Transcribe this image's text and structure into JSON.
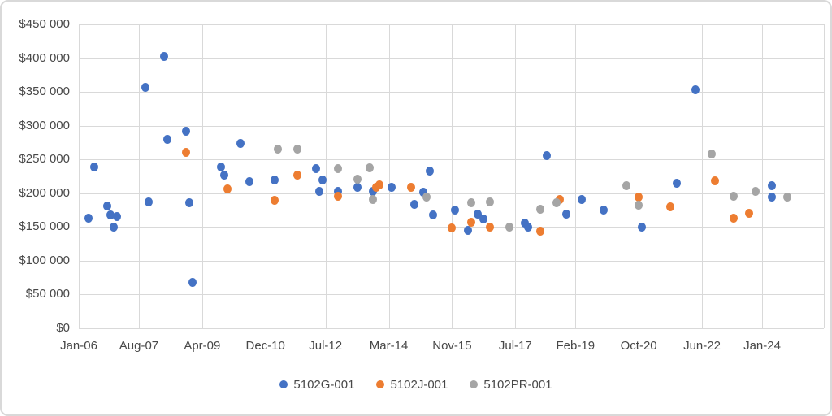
{
  "chart_data": {
    "type": "scatter",
    "title": "",
    "xlabel": "",
    "ylabel": "",
    "x_axis": {
      "tick_labels": [
        "Jan-06",
        "Aug-07",
        "Apr-09",
        "Dec-10",
        "Jul-12",
        "Mar-14",
        "Nov-15",
        "Jul-17",
        "Feb-19",
        "Oct-20",
        "Jun-22",
        "Jan-24"
      ],
      "start": "Jan-06",
      "months_span_labeled": 216,
      "grid": true
    },
    "y_axis": {
      "tick_labels": [
        "$450 000",
        "$400 000",
        "$350 000",
        "$300 000",
        "$250 000",
        "$200 000",
        "$150 000",
        "$100 000",
        "$50 000",
        "$0"
      ],
      "min": 0,
      "max": 450000,
      "step": 50000,
      "grid": true
    },
    "legend_position": "bottom-center",
    "series": [
      {
        "name": "5102G-001",
        "color": "#4472C4",
        "points": [
          [
            "Apr-06",
            163000
          ],
          [
            "Jun-06",
            239000
          ],
          [
            "Oct-06",
            181000
          ],
          [
            "Nov-06",
            167000
          ],
          [
            "Dec-06",
            150000
          ],
          [
            "Jan-07",
            165000
          ],
          [
            "Oct-07",
            357000
          ],
          [
            "Nov-07",
            187000
          ],
          [
            "Apr-08",
            403000
          ],
          [
            "May-08",
            280000
          ],
          [
            "Nov-08",
            292000
          ],
          [
            "Dec-08",
            185000
          ],
          [
            "Jan-09",
            68000
          ],
          [
            "Oct-09",
            238000
          ],
          [
            "Nov-09",
            226000
          ],
          [
            "Apr-10",
            273000
          ],
          [
            "Jul-10",
            217000
          ],
          [
            "Mar-11",
            219000
          ],
          [
            "Apr-12",
            236000
          ],
          [
            "May-12",
            202000
          ],
          [
            "Jun-12",
            219000
          ],
          [
            "Nov-12",
            203000
          ],
          [
            "May-13",
            209000
          ],
          [
            "Oct-13",
            202000
          ],
          [
            "Apr-14",
            209000
          ],
          [
            "Nov-14",
            183000
          ],
          [
            "Feb-15",
            201000
          ],
          [
            "Apr-15",
            233000
          ],
          [
            "May-15",
            168000
          ],
          [
            "Dec-15",
            175000
          ],
          [
            "Apr-16",
            144000
          ],
          [
            "Jul-16",
            169000
          ],
          [
            "Sep-16",
            162000
          ],
          [
            "Oct-17",
            156000
          ],
          [
            "Nov-17",
            150000
          ],
          [
            "May-18",
            255000
          ],
          [
            "Nov-18",
            169000
          ],
          [
            "Apr-19",
            190000
          ],
          [
            "Nov-19",
            175000
          ],
          [
            "Nov-20",
            150000
          ],
          [
            "Oct-21",
            214000
          ],
          [
            "Apr-22",
            353000
          ],
          [
            "Apr-24",
            211000
          ],
          [
            "Apr-24",
            194000
          ]
        ]
      },
      {
        "name": "5102J-001",
        "color": "#ED7D31",
        "points": [
          [
            "Nov-08",
            260000
          ],
          [
            "Dec-09",
            206000
          ],
          [
            "Mar-11",
            189000
          ],
          [
            "Oct-11",
            227000
          ],
          [
            "Nov-12",
            195000
          ],
          [
            "Nov-13",
            208000
          ],
          [
            "Dec-13",
            212000
          ],
          [
            "Oct-14",
            208000
          ],
          [
            "Nov-15",
            148000
          ],
          [
            "May-16",
            157000
          ],
          [
            "Nov-16",
            149000
          ],
          [
            "Mar-18",
            143000
          ],
          [
            "Sep-18",
            190000
          ],
          [
            "Oct-20",
            194000
          ],
          [
            "Aug-21",
            179000
          ],
          [
            "Oct-22",
            218000
          ],
          [
            "Apr-23",
            163000
          ],
          [
            "Sep-23",
            170000
          ]
        ]
      },
      {
        "name": "5102PR-001",
        "color": "#A5A5A5",
        "points": [
          [
            "Apr-11",
            265000
          ],
          [
            "Oct-11",
            265000
          ],
          [
            "Nov-12",
            236000
          ],
          [
            "May-13",
            221000
          ],
          [
            "Sep-13",
            237000
          ],
          [
            "Oct-13",
            190000
          ],
          [
            "Mar-15",
            194000
          ],
          [
            "May-16",
            185000
          ],
          [
            "Nov-16",
            187000
          ],
          [
            "May-17",
            149000
          ],
          [
            "Mar-18",
            176000
          ],
          [
            "Aug-18",
            185000
          ],
          [
            "Jun-20",
            211000
          ],
          [
            "Oct-20",
            182000
          ],
          [
            "Sep-22",
            258000
          ],
          [
            "Apr-23",
            195000
          ],
          [
            "Nov-23",
            203000
          ],
          [
            "Sep-24",
            194000
          ]
        ]
      }
    ],
    "colors": {
      "gridline": "#d9d9d9",
      "axis_text": "#484848",
      "background": "#ffffff",
      "frame_border": "#d9d9d9"
    }
  }
}
